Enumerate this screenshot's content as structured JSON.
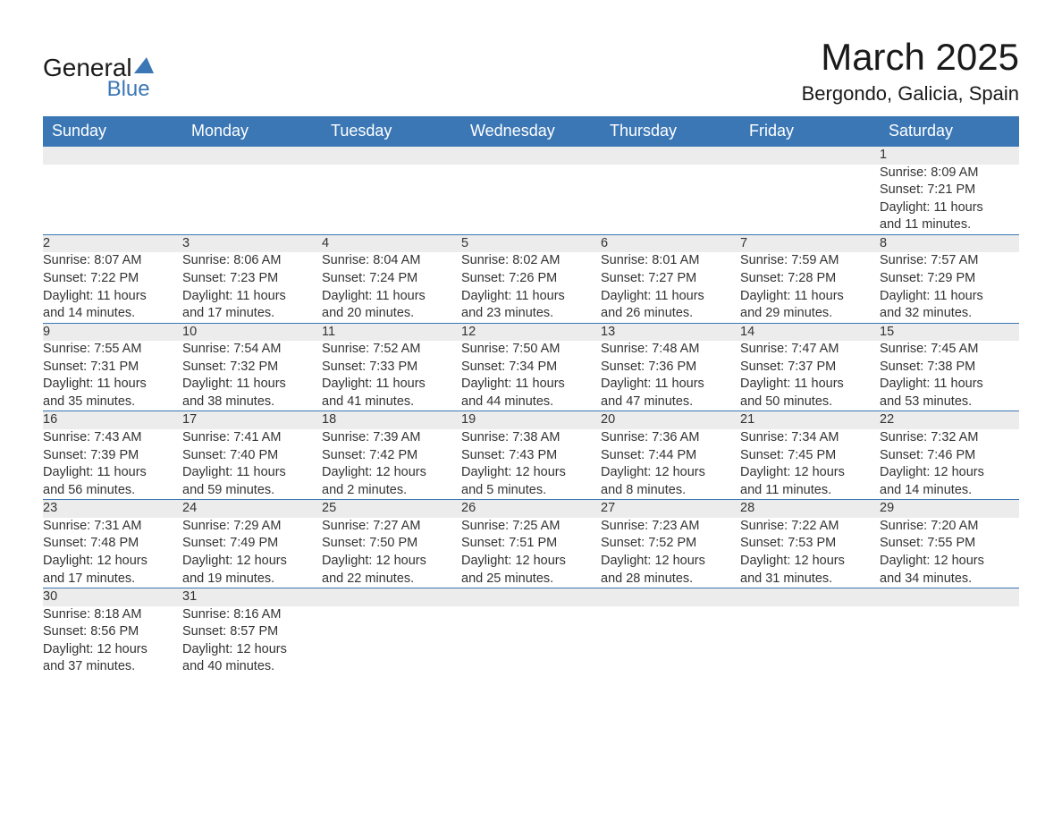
{
  "logo": {
    "text1": "General",
    "text2": "Blue"
  },
  "title": "March 2025",
  "location": "Bergondo, Galicia, Spain",
  "colors": {
    "header_bg": "#3b77b5",
    "header_fg": "#ffffff",
    "daynum_bg": "#ececec",
    "row_divider": "#3b77b5",
    "text": "#333333",
    "accent": "#3b77b5"
  },
  "day_headers": [
    "Sunday",
    "Monday",
    "Tuesday",
    "Wednesday",
    "Thursday",
    "Friday",
    "Saturday"
  ],
  "weeks": [
    [
      null,
      null,
      null,
      null,
      null,
      null,
      {
        "n": "1",
        "sunrise": "Sunrise: 8:09 AM",
        "sunset": "Sunset: 7:21 PM",
        "dl1": "Daylight: 11 hours",
        "dl2": "and 11 minutes."
      }
    ],
    [
      {
        "n": "2",
        "sunrise": "Sunrise: 8:07 AM",
        "sunset": "Sunset: 7:22 PM",
        "dl1": "Daylight: 11 hours",
        "dl2": "and 14 minutes."
      },
      {
        "n": "3",
        "sunrise": "Sunrise: 8:06 AM",
        "sunset": "Sunset: 7:23 PM",
        "dl1": "Daylight: 11 hours",
        "dl2": "and 17 minutes."
      },
      {
        "n": "4",
        "sunrise": "Sunrise: 8:04 AM",
        "sunset": "Sunset: 7:24 PM",
        "dl1": "Daylight: 11 hours",
        "dl2": "and 20 minutes."
      },
      {
        "n": "5",
        "sunrise": "Sunrise: 8:02 AM",
        "sunset": "Sunset: 7:26 PM",
        "dl1": "Daylight: 11 hours",
        "dl2": "and 23 minutes."
      },
      {
        "n": "6",
        "sunrise": "Sunrise: 8:01 AM",
        "sunset": "Sunset: 7:27 PM",
        "dl1": "Daylight: 11 hours",
        "dl2": "and 26 minutes."
      },
      {
        "n": "7",
        "sunrise": "Sunrise: 7:59 AM",
        "sunset": "Sunset: 7:28 PM",
        "dl1": "Daylight: 11 hours",
        "dl2": "and 29 minutes."
      },
      {
        "n": "8",
        "sunrise": "Sunrise: 7:57 AM",
        "sunset": "Sunset: 7:29 PM",
        "dl1": "Daylight: 11 hours",
        "dl2": "and 32 minutes."
      }
    ],
    [
      {
        "n": "9",
        "sunrise": "Sunrise: 7:55 AM",
        "sunset": "Sunset: 7:31 PM",
        "dl1": "Daylight: 11 hours",
        "dl2": "and 35 minutes."
      },
      {
        "n": "10",
        "sunrise": "Sunrise: 7:54 AM",
        "sunset": "Sunset: 7:32 PM",
        "dl1": "Daylight: 11 hours",
        "dl2": "and 38 minutes."
      },
      {
        "n": "11",
        "sunrise": "Sunrise: 7:52 AM",
        "sunset": "Sunset: 7:33 PM",
        "dl1": "Daylight: 11 hours",
        "dl2": "and 41 minutes."
      },
      {
        "n": "12",
        "sunrise": "Sunrise: 7:50 AM",
        "sunset": "Sunset: 7:34 PM",
        "dl1": "Daylight: 11 hours",
        "dl2": "and 44 minutes."
      },
      {
        "n": "13",
        "sunrise": "Sunrise: 7:48 AM",
        "sunset": "Sunset: 7:36 PM",
        "dl1": "Daylight: 11 hours",
        "dl2": "and 47 minutes."
      },
      {
        "n": "14",
        "sunrise": "Sunrise: 7:47 AM",
        "sunset": "Sunset: 7:37 PM",
        "dl1": "Daylight: 11 hours",
        "dl2": "and 50 minutes."
      },
      {
        "n": "15",
        "sunrise": "Sunrise: 7:45 AM",
        "sunset": "Sunset: 7:38 PM",
        "dl1": "Daylight: 11 hours",
        "dl2": "and 53 minutes."
      }
    ],
    [
      {
        "n": "16",
        "sunrise": "Sunrise: 7:43 AM",
        "sunset": "Sunset: 7:39 PM",
        "dl1": "Daylight: 11 hours",
        "dl2": "and 56 minutes."
      },
      {
        "n": "17",
        "sunrise": "Sunrise: 7:41 AM",
        "sunset": "Sunset: 7:40 PM",
        "dl1": "Daylight: 11 hours",
        "dl2": "and 59 minutes."
      },
      {
        "n": "18",
        "sunrise": "Sunrise: 7:39 AM",
        "sunset": "Sunset: 7:42 PM",
        "dl1": "Daylight: 12 hours",
        "dl2": "and 2 minutes."
      },
      {
        "n": "19",
        "sunrise": "Sunrise: 7:38 AM",
        "sunset": "Sunset: 7:43 PM",
        "dl1": "Daylight: 12 hours",
        "dl2": "and 5 minutes."
      },
      {
        "n": "20",
        "sunrise": "Sunrise: 7:36 AM",
        "sunset": "Sunset: 7:44 PM",
        "dl1": "Daylight: 12 hours",
        "dl2": "and 8 minutes."
      },
      {
        "n": "21",
        "sunrise": "Sunrise: 7:34 AM",
        "sunset": "Sunset: 7:45 PM",
        "dl1": "Daylight: 12 hours",
        "dl2": "and 11 minutes."
      },
      {
        "n": "22",
        "sunrise": "Sunrise: 7:32 AM",
        "sunset": "Sunset: 7:46 PM",
        "dl1": "Daylight: 12 hours",
        "dl2": "and 14 minutes."
      }
    ],
    [
      {
        "n": "23",
        "sunrise": "Sunrise: 7:31 AM",
        "sunset": "Sunset: 7:48 PM",
        "dl1": "Daylight: 12 hours",
        "dl2": "and 17 minutes."
      },
      {
        "n": "24",
        "sunrise": "Sunrise: 7:29 AM",
        "sunset": "Sunset: 7:49 PM",
        "dl1": "Daylight: 12 hours",
        "dl2": "and 19 minutes."
      },
      {
        "n": "25",
        "sunrise": "Sunrise: 7:27 AM",
        "sunset": "Sunset: 7:50 PM",
        "dl1": "Daylight: 12 hours",
        "dl2": "and 22 minutes."
      },
      {
        "n": "26",
        "sunrise": "Sunrise: 7:25 AM",
        "sunset": "Sunset: 7:51 PM",
        "dl1": "Daylight: 12 hours",
        "dl2": "and 25 minutes."
      },
      {
        "n": "27",
        "sunrise": "Sunrise: 7:23 AM",
        "sunset": "Sunset: 7:52 PM",
        "dl1": "Daylight: 12 hours",
        "dl2": "and 28 minutes."
      },
      {
        "n": "28",
        "sunrise": "Sunrise: 7:22 AM",
        "sunset": "Sunset: 7:53 PM",
        "dl1": "Daylight: 12 hours",
        "dl2": "and 31 minutes."
      },
      {
        "n": "29",
        "sunrise": "Sunrise: 7:20 AM",
        "sunset": "Sunset: 7:55 PM",
        "dl1": "Daylight: 12 hours",
        "dl2": "and 34 minutes."
      }
    ],
    [
      {
        "n": "30",
        "sunrise": "Sunrise: 8:18 AM",
        "sunset": "Sunset: 8:56 PM",
        "dl1": "Daylight: 12 hours",
        "dl2": "and 37 minutes."
      },
      {
        "n": "31",
        "sunrise": "Sunrise: 8:16 AM",
        "sunset": "Sunset: 8:57 PM",
        "dl1": "Daylight: 12 hours",
        "dl2": "and 40 minutes."
      },
      null,
      null,
      null,
      null,
      null
    ]
  ]
}
